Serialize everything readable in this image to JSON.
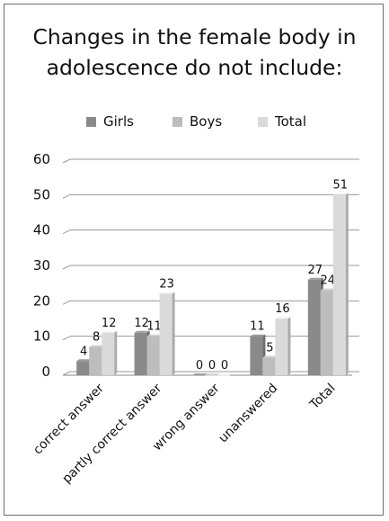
{
  "chart_data": {
    "type": "bar",
    "title": "Changes in the female body in adolescence do not include:",
    "title_lines": [
      "Changes in the female body in",
      "adolescence do not include:"
    ],
    "categories": [
      "correct answer",
      "partly correct answer",
      "wrong answer",
      "unanswered",
      "Total"
    ],
    "series": [
      {
        "name": "Girls",
        "values": [
          4,
          12,
          0,
          11,
          27
        ],
        "color": "#8a8a8a"
      },
      {
        "name": "Boys",
        "values": [
          8,
          11,
          0,
          5,
          24
        ],
        "color": "#bdbdbd"
      },
      {
        "name": "Total",
        "values": [
          12,
          23,
          0,
          16,
          51
        ],
        "color": "#dadada"
      }
    ],
    "ylim": [
      0,
      60
    ],
    "yticks": [
      0,
      10,
      20,
      30,
      40,
      50,
      60
    ],
    "grid": true,
    "legend_position": "top",
    "style": "3d-bars"
  }
}
